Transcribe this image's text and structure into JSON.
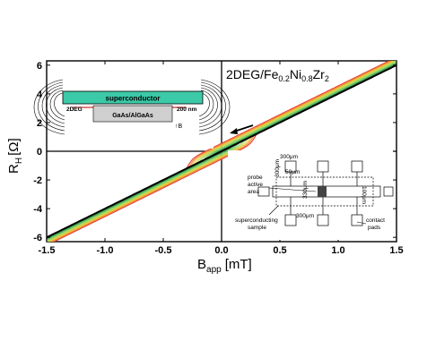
{
  "chart_data": {
    "type": "line",
    "title": "",
    "xlabel_main": "B",
    "xlabel_sub": "app",
    "xlabel_unit": "[mT]",
    "ylabel_main": "R",
    "ylabel_sub": "H",
    "ylabel_unit": "[Ω]",
    "xlim": [
      -1.5,
      1.5
    ],
    "ylim": [
      -6.3,
      6.3
    ],
    "xticks": [
      -1.5,
      -1.0,
      -0.5,
      0.0,
      0.5,
      1.0,
      1.5
    ],
    "xtick_labels": [
      "-1.5",
      "-1.0",
      "-0.5",
      "0.0",
      "0.5",
      "1.0",
      "1.5"
    ],
    "yticks": [
      -6,
      -4,
      -2,
      0,
      2,
      4,
      6
    ],
    "ytick_labels": [
      "-6",
      "-4",
      "-2",
      "0",
      "2",
      "4",
      "6"
    ],
    "grid": false,
    "slope": 4.0,
    "hysteresis_loops": [
      {
        "color": "#e8443a",
        "step_height": 0.55,
        "switch_field": 0.3
      },
      {
        "color": "#f08a3c",
        "step_height": 0.48,
        "switch_field": 0.28
      },
      {
        "color": "#e8c53a",
        "step_height": 0.4,
        "switch_field": 0.26
      },
      {
        "color": "#c8d84a",
        "step_height": 0.32,
        "switch_field": 0.23
      },
      {
        "color": "#9ad36a",
        "step_height": 0.24,
        "switch_field": 0.2
      },
      {
        "color": "#5fc06a",
        "step_height": 0.16,
        "switch_field": 0.16
      },
      {
        "color": "#2f8f3a",
        "step_height": 0.08,
        "switch_field": 0.12
      },
      {
        "color": "#000000",
        "step_height": 0.0,
        "switch_field": 0.0
      }
    ],
    "material_label": {
      "prefix": "2DEG/Fe",
      "sub1": "0.2",
      "mid1": "Ni",
      "sub2": "0.8",
      "mid2": "Zr",
      "sub3": "2"
    },
    "inset_left": {
      "superconductor": "superconductor",
      "twodeg": "2DEG",
      "thickness": "200 nm",
      "substrate": "GaAs/AlGaAs",
      "field": "↑B"
    },
    "inset_right": {
      "dim_300_top": "300μm",
      "dim_50": "50μm",
      "dim_300_vert": "300μm",
      "dim_330": "330μm",
      "dim_100": "100μm",
      "dim_300_bottom": "300μm",
      "probe_line1": "probe",
      "probe_line2": "active",
      "probe_line3": "area",
      "sc_line1": "superconducting",
      "sc_line2": "sample",
      "pads_line1": "contact",
      "pads_line2": "pads"
    }
  }
}
